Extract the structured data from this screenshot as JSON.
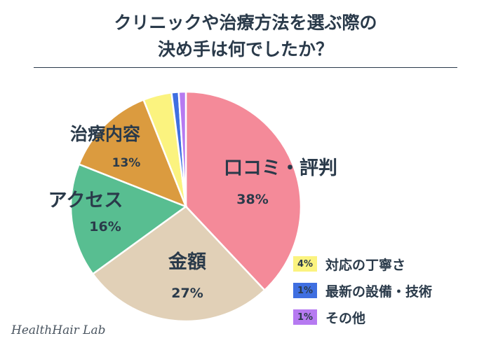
{
  "chart_data": {
    "type": "pie",
    "title_lines": [
      "クリニックや治療方法を選ぶ際の",
      "決め手は何でしたか？"
    ],
    "slices": [
      {
        "label": "口コミ・評判",
        "value": 38,
        "value_text": "38%",
        "color": "#F48A99"
      },
      {
        "label": "金額",
        "value": 27,
        "value_text": "27%",
        "color": "#E1D0B7"
      },
      {
        "label": "アクセス",
        "value": 16,
        "value_text": "16%",
        "color": "#58BE91"
      },
      {
        "label": "治療内容",
        "value": 13,
        "value_text": "13%",
        "color": "#DB9B3F"
      },
      {
        "label": "対応の丁寧さ",
        "value": 4,
        "value_text": "4%",
        "color": "#FBF37F"
      },
      {
        "label": "最新の設備・技術",
        "value": 1,
        "value_text": "1%",
        "color": "#3F6FE1"
      },
      {
        "label": "その他",
        "value": 1,
        "value_text": "1%",
        "color": "#B67AF1"
      }
    ],
    "start": "top",
    "direction": "clockwise"
  },
  "brand": "HealthHair Lab"
}
